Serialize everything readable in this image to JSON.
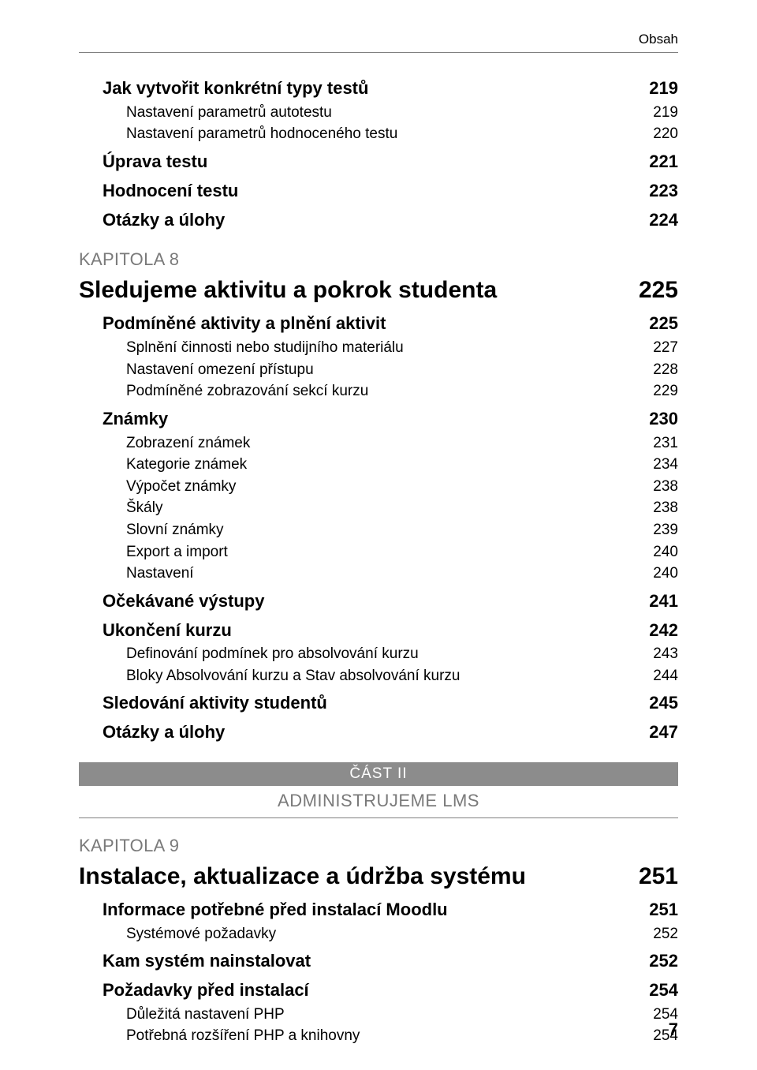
{
  "running_head": "Obsah",
  "footer_page": "7",
  "part": {
    "bar": "ČÁST II",
    "subtitle": "ADMINISTRUJEME LMS"
  },
  "entries": [
    {
      "kind": "l0",
      "label": "Jak vytvořit konkrétní typy testů",
      "page": "219"
    },
    {
      "kind": "l1",
      "label": "Nastavení parametrů autotestu",
      "page": "219"
    },
    {
      "kind": "l1",
      "label": "Nastavení parametrů hodnoceného testu",
      "page": "220"
    },
    {
      "kind": "l0",
      "label": "Úprava testu",
      "page": "221"
    },
    {
      "kind": "l0",
      "label": "Hodnocení testu",
      "page": "223"
    },
    {
      "kind": "l0",
      "label": "Otázky a úlohy",
      "page": "224"
    },
    {
      "kind": "kap",
      "label": "KAPITOLA 8"
    },
    {
      "kind": "chapter",
      "label": "Sledujeme aktivitu a pokrok studenta",
      "page": "225"
    },
    {
      "kind": "l0",
      "label": "Podmíněné aktivity a plnění aktivit",
      "page": "225"
    },
    {
      "kind": "l1",
      "label": "Splnění činnosti nebo studijního materiálu",
      "page": "227"
    },
    {
      "kind": "l1",
      "label": "Nastavení omezení přístupu",
      "page": "228"
    },
    {
      "kind": "l1",
      "label": "Podmíněné zobrazování sekcí kurzu",
      "page": "229"
    },
    {
      "kind": "l0",
      "label": "Známky",
      "page": "230"
    },
    {
      "kind": "l1",
      "label": "Zobrazení známek",
      "page": "231"
    },
    {
      "kind": "l1",
      "label": "Kategorie známek",
      "page": "234"
    },
    {
      "kind": "l1",
      "label": "Výpočet známky",
      "page": "238"
    },
    {
      "kind": "l1",
      "label": "Škály",
      "page": "238"
    },
    {
      "kind": "l1",
      "label": "Slovní známky",
      "page": "239"
    },
    {
      "kind": "l1",
      "label": "Export a import",
      "page": "240"
    },
    {
      "kind": "l1",
      "label": "Nastavení",
      "page": "240"
    },
    {
      "kind": "l0",
      "label": "Očekávané výstupy",
      "page": "241"
    },
    {
      "kind": "l0",
      "label": "Ukončení kurzu",
      "page": "242"
    },
    {
      "kind": "l1",
      "label": "Definování podmínek pro absolvování kurzu",
      "page": "243"
    },
    {
      "kind": "l1",
      "label": "Bloky Absolvování kurzu a Stav absolvování kurzu",
      "page": "244"
    },
    {
      "kind": "l0",
      "label": "Sledování aktivity studentů",
      "page": "245"
    },
    {
      "kind": "l0",
      "label": "Otázky a úlohy",
      "page": "247"
    },
    {
      "kind": "part"
    },
    {
      "kind": "kap",
      "label": "KAPITOLA  9"
    },
    {
      "kind": "chapter",
      "label": "Instalace, aktualizace a údržba systému",
      "page": "251"
    },
    {
      "kind": "l0",
      "label": "Informace potřebné před instalací Moodlu",
      "page": "251"
    },
    {
      "kind": "l1",
      "label": "Systémové požadavky",
      "page": "252"
    },
    {
      "kind": "l0",
      "label": "Kam systém nainstalovat",
      "page": "252"
    },
    {
      "kind": "l0",
      "label": "Požadavky před instalací",
      "page": "254"
    },
    {
      "kind": "l1",
      "label": "Důležitá nastavení PHP",
      "page": "254"
    },
    {
      "kind": "l1",
      "label": "Potřebná rozšíření PHP a knihovny",
      "page": "254"
    }
  ]
}
